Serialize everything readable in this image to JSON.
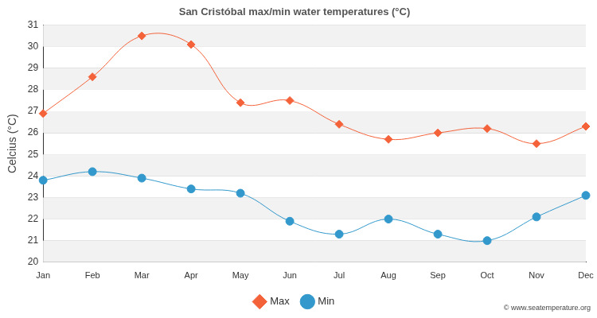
{
  "chart_data": {
    "type": "line",
    "title": "San Cristóbal max/min water temperatures (°C)",
    "y_label": "Celcius (°C)",
    "categories": [
      "Jan",
      "Feb",
      "Mar",
      "Apr",
      "May",
      "Jun",
      "Jul",
      "Aug",
      "Sep",
      "Oct",
      "Nov",
      "Dec"
    ],
    "series": [
      {
        "name": "Max",
        "color": "#f4623a",
        "marker": "diamond",
        "values": [
          26.9,
          28.6,
          30.5,
          30.1,
          27.4,
          27.5,
          26.4,
          25.7,
          26.0,
          26.2,
          25.5,
          26.3
        ]
      },
      {
        "name": "Min",
        "color": "#3399cc",
        "marker": "circle",
        "values": [
          23.8,
          24.2,
          23.9,
          23.4,
          23.2,
          21.9,
          21.3,
          22.0,
          21.3,
          21.0,
          22.1,
          23.1
        ]
      }
    ],
    "ylim": [
      20,
      31
    ],
    "yticks": [
      20,
      21,
      22,
      23,
      24,
      25,
      26,
      27,
      28,
      29,
      30,
      31
    ],
    "grid": true,
    "legend": "bottom",
    "annotations": [
      "© www.seatemperature.org"
    ]
  }
}
